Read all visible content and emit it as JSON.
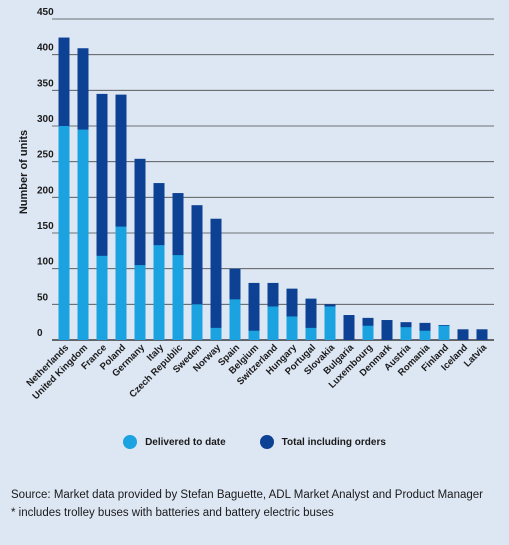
{
  "chart_data": {
    "type": "bar",
    "ylabel": "Number of units",
    "ylim": [
      0,
      450
    ],
    "yticks": [
      0,
      50,
      100,
      150,
      200,
      250,
      300,
      350,
      400,
      450
    ],
    "grid": true,
    "categories": [
      "Netherlands",
      "United Kingdom",
      "France",
      "Poland",
      "Germany",
      "Italy",
      "Czech Republic",
      "Sweden",
      "Norway",
      "Spain",
      "Belgium",
      "Switzerland",
      "Hungary",
      "Portugal",
      "Slovakia",
      "Bulgaria",
      "Luxembourg",
      "Denmark",
      "Austria",
      "Romania",
      "Finland",
      "Iceland",
      "Latvia"
    ],
    "series": [
      {
        "name": "Delivered to date",
        "color": "#1aa3e0",
        "values": [
          300,
          295,
          118,
          159,
          105,
          133,
          119,
          50,
          17,
          57,
          13,
          47,
          33,
          17,
          47,
          0,
          20,
          0,
          18,
          13,
          20,
          0,
          0
        ]
      },
      {
        "name": "Total including orders",
        "color": "#0d4194",
        "values": [
          424,
          409,
          345,
          344,
          254,
          220,
          206,
          189,
          170,
          100,
          80,
          80,
          72,
          58,
          50,
          35,
          31,
          28,
          25,
          24,
          21,
          15,
          15
        ]
      }
    ],
    "legend_position": "bottom"
  },
  "legend": {
    "delivered_label": "Delivered to date",
    "total_label": "Total including orders"
  },
  "source": {
    "line1": "Source: Market data provided by Stefan Baguette, ADL Market Analyst and Product Manager",
    "line2": "* includes trolley buses with batteries and battery electric buses"
  }
}
